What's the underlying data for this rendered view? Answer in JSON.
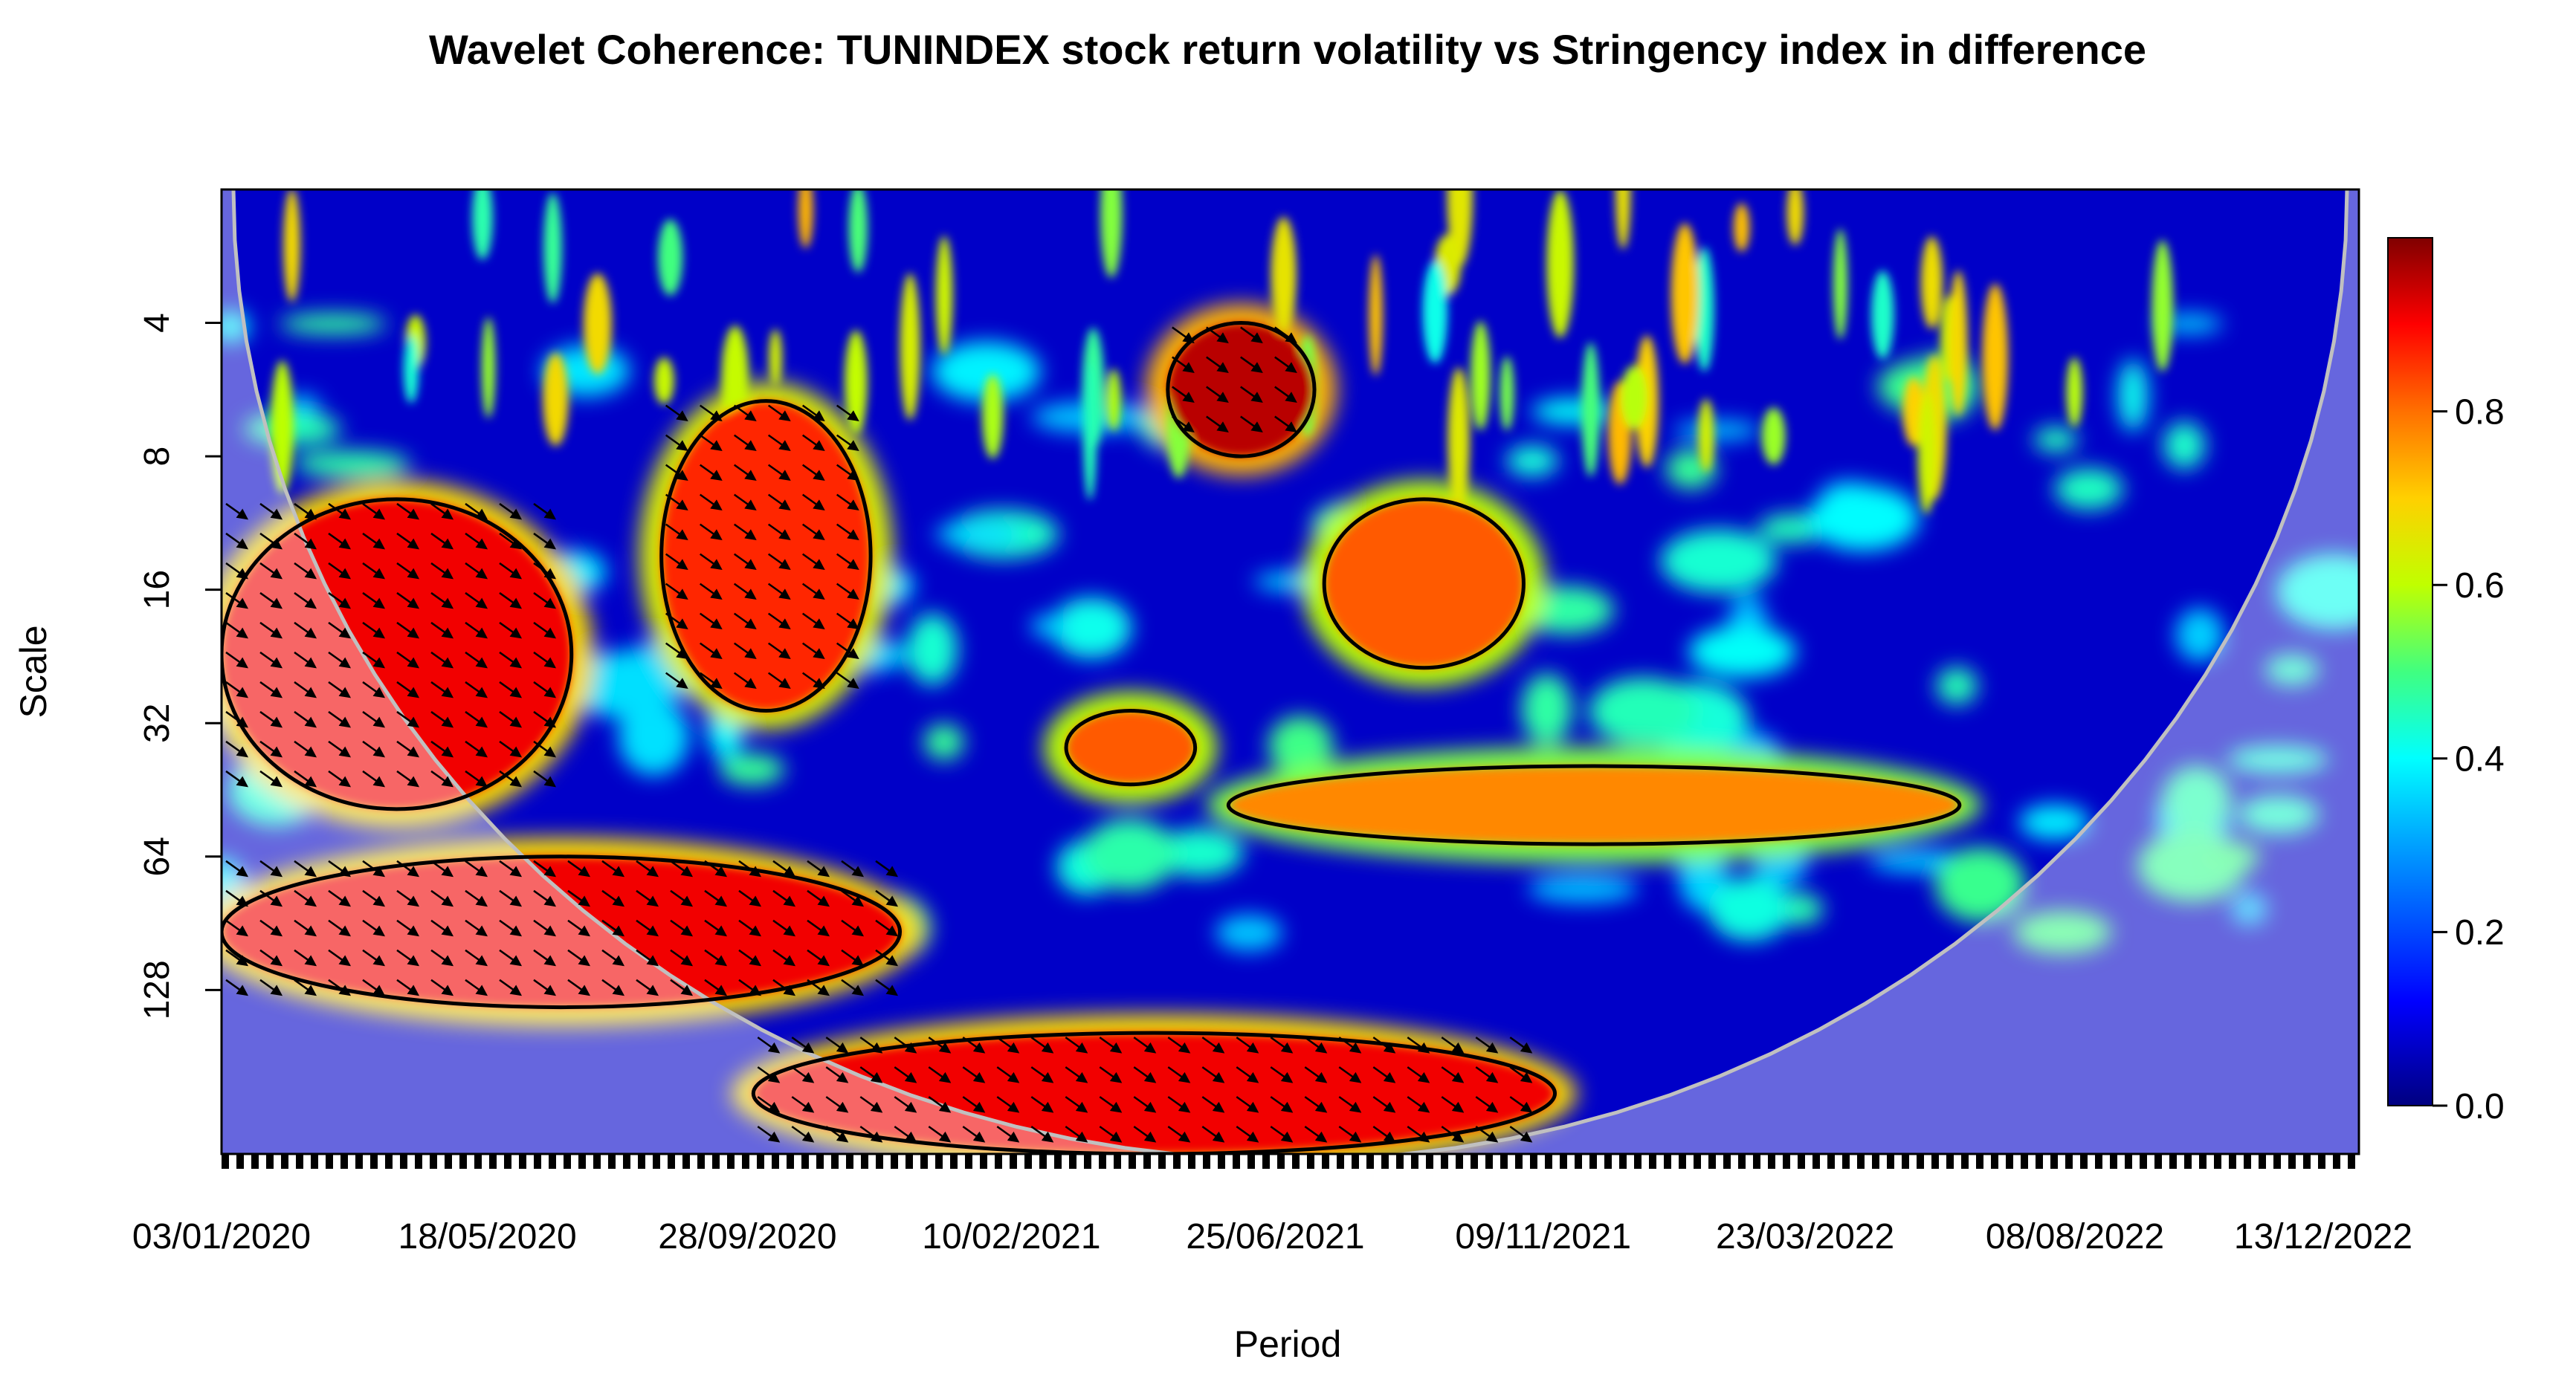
{
  "chart_data": {
    "type": "heatmap",
    "title": "Wavelet Coherence: TUNINDEX stock return volatility vs Stringency index in difference",
    "xlabel": "Period",
    "ylabel": "Scale",
    "x_tick_labels": [
      "03/01/2020",
      "18/05/2020",
      "28/09/2020",
      "10/02/2021",
      "25/06/2021",
      "09/11/2021",
      "23/03/2022",
      "08/08/2022",
      "13/12/2022"
    ],
    "y_tick_labels": [
      "4",
      "8",
      "16",
      "32",
      "64",
      "128"
    ],
    "y_scale": "log2",
    "y_range": [
      2,
      300
    ],
    "y_reversed": true,
    "colorbar": {
      "ticks": [
        "0.0",
        "0.2",
        "0.4",
        "0.6",
        "0.8"
      ],
      "range": [
        0,
        1
      ],
      "colors": [
        "#000080",
        "#0000ff",
        "#00a0ff",
        "#00ffff",
        "#40ff80",
        "#c0ff00",
        "#ffd000",
        "#ff7000",
        "#ff0000",
        "#800000"
      ]
    },
    "high_coherence_regions": [
      {
        "start": "03/01/2020",
        "end": "30/06/2020",
        "scale_min": 10,
        "scale_max": 50,
        "coherence": 0.9
      },
      {
        "start": "03/01/2020",
        "end": "15/12/2020",
        "scale_min": 64,
        "scale_max": 140,
        "coherence": 0.9
      },
      {
        "start": "15/08/2020",
        "end": "30/11/2020",
        "scale_min": 6,
        "scale_max": 30,
        "coherence": 0.85
      },
      {
        "start": "01/05/2021",
        "end": "15/07/2021",
        "scale_min": 4,
        "scale_max": 8,
        "coherence": 0.95
      },
      {
        "start": "20/07/2021",
        "end": "30/10/2021",
        "scale_min": 10,
        "scale_max": 24,
        "coherence": 0.8
      },
      {
        "start": "10/03/2021",
        "end": "15/05/2021",
        "scale_min": 30,
        "scale_max": 44,
        "coherence": 0.8
      },
      {
        "start": "01/06/2021",
        "end": "10/06/2022",
        "scale_min": 40,
        "scale_max": 60,
        "coherence": 0.75
      },
      {
        "start": "01/10/2020",
        "end": "15/11/2021",
        "scale_min": 160,
        "scale_max": 300,
        "coherence": 0.9
      }
    ]
  }
}
